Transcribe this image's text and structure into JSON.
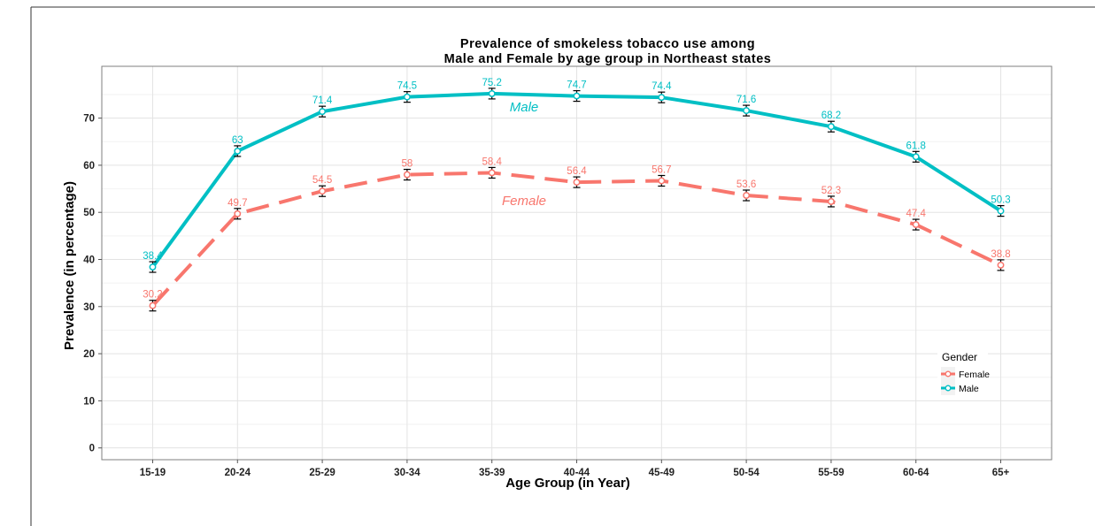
{
  "chart_data": {
    "type": "line",
    "title": [
      "Prevalence of smokeless tobacco use among",
      "Male and Female by age group in Northeast states"
    ],
    "xlabel": "Age Group (in Year)",
    "ylabel": "Prevalence (in percentage)",
    "categories": [
      "15-19",
      "20-24",
      "25-29",
      "30-34",
      "35-39",
      "40-44",
      "45-49",
      "50-54",
      "55-59",
      "60-64",
      "65+"
    ],
    "ylim": [
      -2.5,
      81
    ],
    "yticks": [
      0,
      10,
      20,
      30,
      40,
      50,
      60,
      70
    ],
    "grid": true,
    "legend": {
      "title": "Gender",
      "position": "right",
      "entries": [
        "Female",
        "Male"
      ]
    },
    "series": [
      {
        "name": "Female",
        "color": "#F8766D",
        "linestyle": "dashed",
        "values": [
          30.2,
          49.7,
          54.5,
          58,
          58.4,
          56.4,
          56.7,
          53.6,
          52.3,
          47.4,
          38.8
        ],
        "labels": [
          "30.2",
          "49.7",
          "54.5",
          "58",
          "58.4",
          "56.4",
          "56.7",
          "53.6",
          "52.3",
          "47.4",
          "38.8"
        ],
        "inline_label": "Female"
      },
      {
        "name": "Male",
        "color": "#00BFC4",
        "linestyle": "solid",
        "values": [
          38.4,
          63,
          71.4,
          74.5,
          75.2,
          74.7,
          74.4,
          71.6,
          68.2,
          61.8,
          50.3
        ],
        "labels": [
          "38.4",
          "63",
          "71.4",
          "74.5",
          "75.2",
          "74.7",
          "74.4",
          "71.6",
          "68.2",
          "61.8",
          "50.3"
        ],
        "inline_label": "Male"
      }
    ]
  }
}
